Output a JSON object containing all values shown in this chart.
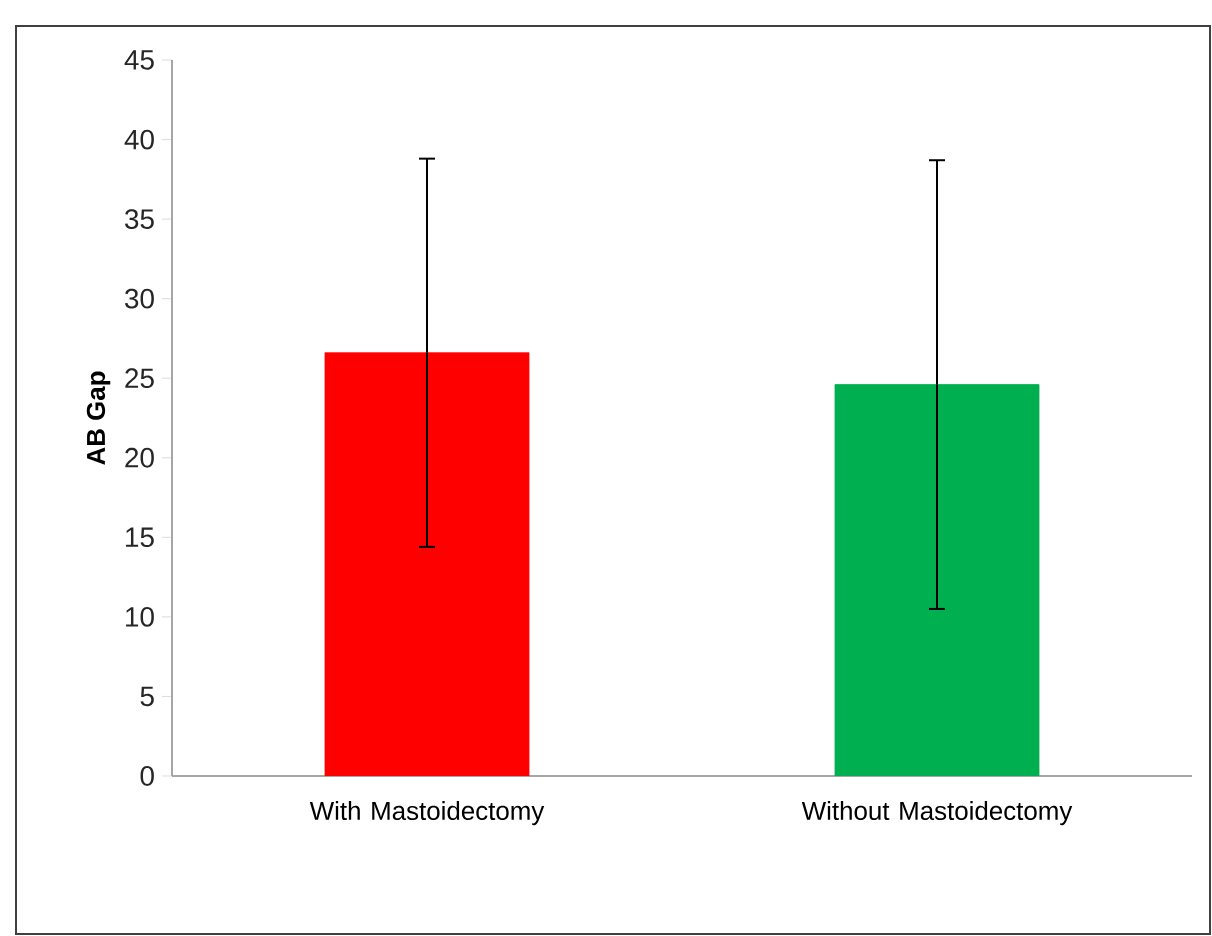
{
  "chart_data": {
    "type": "bar",
    "ylabel": "AB Gap",
    "categories": [
      "With Mastoidectomy",
      "Without Mastoidectomy"
    ],
    "values": [
      26.6,
      24.6
    ],
    "errors": [
      12.2,
      14.1
    ],
    "colors": [
      "#ff0000",
      "#00b050"
    ],
    "ylim": [
      0,
      45
    ],
    "yticks": [
      0,
      5,
      10,
      15,
      20,
      25,
      30,
      35,
      40,
      45
    ]
  }
}
